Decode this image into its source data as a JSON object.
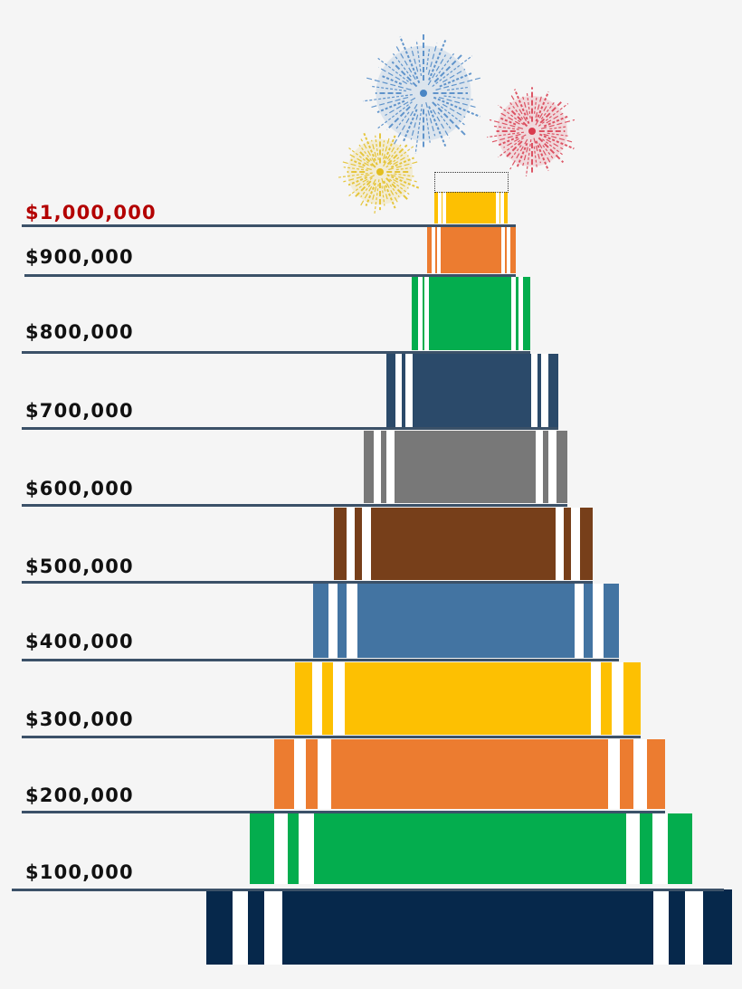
{
  "chart_data": {
    "type": "bar",
    "title": "",
    "levels": [
      {
        "label": "$100,000",
        "value": 100000,
        "highlight": false
      },
      {
        "label": "$200,000",
        "value": 200000,
        "highlight": false
      },
      {
        "label": "$300,000",
        "value": 300000,
        "highlight": false
      },
      {
        "label": "$400,000",
        "value": 400000,
        "highlight": false
      },
      {
        "label": "$500,000",
        "value": 500000,
        "highlight": false
      },
      {
        "label": "$600,000",
        "value": 600000,
        "highlight": false
      },
      {
        "label": "$700,000",
        "value": 700000,
        "highlight": false
      },
      {
        "label": "$800,000",
        "value": 800000,
        "highlight": false
      },
      {
        "label": "$900,000",
        "value": 900000,
        "highlight": false
      },
      {
        "label": "$1,000,000",
        "value": 1000000,
        "highlight": true
      }
    ],
    "tier_colors": [
      "#06284b",
      "#04ad4e",
      "#ec7c30",
      "#fdc002",
      "#4374a2",
      "#773f1a",
      "#787878",
      "#2b4a6a",
      "#04ad4e",
      "#ec7c30",
      "#fdc002"
    ],
    "grid": false,
    "legend": "none"
  },
  "decorations": {
    "fireworks": [
      {
        "name": "blue-firework",
        "color": "#4a86c5"
      },
      {
        "name": "red-firework",
        "color": "#d93b4e"
      },
      {
        "name": "yellow-firework",
        "color": "#e3be1f"
      }
    ]
  }
}
